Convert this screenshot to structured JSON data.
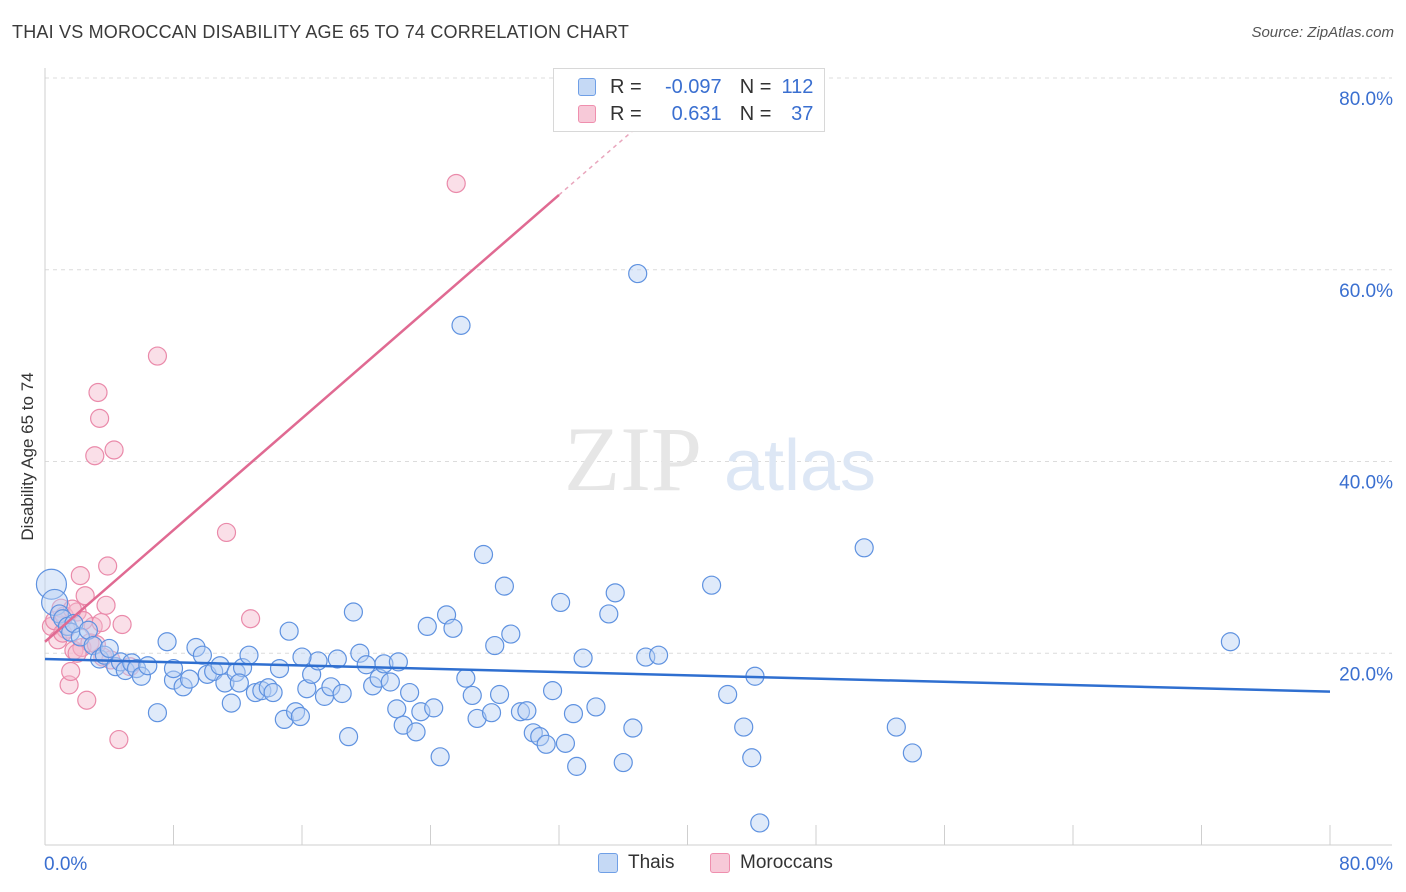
{
  "title": "THAI VS MOROCCAN DISABILITY AGE 65 TO 74 CORRELATION CHART",
  "source": "Source: ZipAtlas.com",
  "watermark": {
    "zip": "ZIP",
    "atlas": "atlas"
  },
  "legend": {
    "rows": [
      {
        "r_label": "R =",
        "r_value": "-0.097",
        "n_label": "N =",
        "n_value": "112",
        "color": "#6f9fe6"
      },
      {
        "r_label": "R =",
        "r_value": "0.631",
        "n_label": "N =",
        "n_value": "37",
        "color": "#ef8fae"
      }
    ]
  },
  "series_labels": {
    "thais": "Thais",
    "moroccans": "Moroccans"
  },
  "chart_data": {
    "type": "scatter",
    "title": "THAI VS MOROCCAN DISABILITY AGE 65 TO 74 CORRELATION CHART",
    "xlabel": "",
    "ylabel": "Disability Age 65 to 74",
    "xlim": [
      0,
      80
    ],
    "ylim": [
      0,
      80
    ],
    "x_tick_labels": [
      "0.0%",
      "80.0%"
    ],
    "y_tick_labels": [
      "20.0%",
      "40.0%",
      "60.0%",
      "80.0%"
    ],
    "y_ticks": [
      20,
      40,
      60,
      80
    ],
    "grid": true,
    "legend_position": "top-center",
    "series": [
      {
        "name": "Thais",
        "color": "#6f9fe6",
        "R": -0.097,
        "N": 112,
        "trend": {
          "x": [
            0,
            80
          ],
          "y": [
            19.4,
            16.0
          ]
        },
        "points": [
          [
            0.4,
            27.2
          ],
          [
            0.6,
            25.3
          ],
          [
            0.9,
            24.1
          ],
          [
            1.1,
            23.6
          ],
          [
            1.4,
            22.8
          ],
          [
            1.6,
            22.2
          ],
          [
            1.8,
            23.1
          ],
          [
            2.2,
            21.7
          ],
          [
            2.7,
            22.4
          ],
          [
            3.0,
            20.8
          ],
          [
            3.4,
            19.4
          ],
          [
            3.7,
            19.8
          ],
          [
            4.0,
            20.5
          ],
          [
            4.4,
            18.6
          ],
          [
            4.7,
            19.1
          ],
          [
            5.0,
            18.2
          ],
          [
            5.4,
            19.0
          ],
          [
            5.7,
            18.4
          ],
          [
            6.0,
            17.6
          ],
          [
            6.4,
            18.7
          ],
          [
            7.0,
            13.8
          ],
          [
            7.6,
            21.2
          ],
          [
            8.0,
            17.2
          ],
          [
            8.6,
            16.5
          ],
          [
            9.0,
            17.3
          ],
          [
            9.4,
            20.6
          ],
          [
            9.8,
            19.8
          ],
          [
            10.1,
            17.8
          ],
          [
            10.5,
            18.1
          ],
          [
            10.9,
            18.7
          ],
          [
            11.2,
            16.9
          ],
          [
            11.6,
            14.8
          ],
          [
            11.9,
            18.0
          ],
          [
            12.3,
            18.5
          ],
          [
            12.7,
            19.8
          ],
          [
            13.1,
            15.9
          ],
          [
            13.5,
            16.1
          ],
          [
            13.9,
            16.4
          ],
          [
            14.2,
            15.9
          ],
          [
            14.6,
            18.4
          ],
          [
            14.9,
            13.1
          ],
          [
            15.2,
            22.3
          ],
          [
            15.6,
            13.9
          ],
          [
            15.9,
            13.4
          ],
          [
            16.3,
            16.3
          ],
          [
            16.6,
            17.8
          ],
          [
            17.0,
            19.2
          ],
          [
            17.4,
            15.5
          ],
          [
            17.8,
            16.5
          ],
          [
            18.2,
            19.4
          ],
          [
            18.5,
            15.8
          ],
          [
            18.9,
            11.3
          ],
          [
            19.2,
            24.3
          ],
          [
            19.6,
            20.0
          ],
          [
            20.0,
            18.8
          ],
          [
            20.4,
            16.6
          ],
          [
            20.8,
            17.4
          ],
          [
            21.1,
            18.9
          ],
          [
            21.5,
            17.0
          ],
          [
            21.9,
            14.2
          ],
          [
            22.3,
            12.5
          ],
          [
            22.7,
            15.9
          ],
          [
            23.1,
            11.8
          ],
          [
            23.4,
            13.9
          ],
          [
            23.8,
            22.8
          ],
          [
            24.2,
            14.3
          ],
          [
            24.6,
            9.2
          ],
          [
            25.0,
            24.0
          ],
          [
            25.4,
            22.6
          ],
          [
            26.2,
            17.4
          ],
          [
            26.6,
            15.6
          ],
          [
            26.9,
            13.2
          ],
          [
            27.3,
            30.3
          ],
          [
            27.8,
            13.8
          ],
          [
            28.3,
            15.7
          ],
          [
            28.6,
            27.0
          ],
          [
            29.0,
            22.0
          ],
          [
            29.6,
            13.9
          ],
          [
            30.0,
            14.0
          ],
          [
            30.4,
            11.7
          ],
          [
            30.8,
            11.3
          ],
          [
            31.2,
            10.5
          ],
          [
            31.6,
            16.1
          ],
          [
            32.1,
            25.3
          ],
          [
            32.4,
            10.6
          ],
          [
            32.9,
            13.7
          ],
          [
            33.1,
            8.2
          ],
          [
            33.5,
            19.5
          ],
          [
            34.3,
            14.4
          ],
          [
            35.1,
            24.1
          ],
          [
            35.5,
            26.3
          ],
          [
            36.0,
            8.6
          ],
          [
            36.6,
            12.2
          ],
          [
            37.4,
            19.6
          ],
          [
            38.2,
            19.8
          ],
          [
            41.5,
            27.1
          ],
          [
            42.5,
            15.7
          ],
          [
            43.5,
            12.3
          ],
          [
            44.0,
            9.1
          ],
          [
            44.2,
            17.6
          ],
          [
            44.5,
            2.3
          ],
          [
            51.0,
            31.0
          ],
          [
            53.0,
            12.3
          ],
          [
            54.0,
            9.6
          ],
          [
            73.8,
            21.2
          ],
          [
            25.9,
            54.2
          ],
          [
            36.9,
            59.6
          ],
          [
            22.0,
            19.1
          ],
          [
            12.1,
            16.9
          ],
          [
            8.0,
            18.4
          ],
          [
            16.0,
            19.6
          ],
          [
            28.0,
            20.8
          ]
        ]
      },
      {
        "name": "Moroccans",
        "color": "#ef8fae",
        "R": 0.631,
        "N": 37,
        "trend": {
          "x": [
            0,
            32
          ],
          "y": [
            21.2,
            67.8
          ]
        },
        "points": [
          [
            0.4,
            22.8
          ],
          [
            0.6,
            23.4
          ],
          [
            0.8,
            21.4
          ],
          [
            1.0,
            24.7
          ],
          [
            1.2,
            23.9
          ],
          [
            1.3,
            22.5
          ],
          [
            1.5,
            16.7
          ],
          [
            1.6,
            18.1
          ],
          [
            1.8,
            20.3
          ],
          [
            2.0,
            24.3
          ],
          [
            2.2,
            28.1
          ],
          [
            2.3,
            20.6
          ],
          [
            2.5,
            26.0
          ],
          [
            2.6,
            15.1
          ],
          [
            2.8,
            21.1
          ],
          [
            3.0,
            22.8
          ],
          [
            3.1,
            40.6
          ],
          [
            3.3,
            47.2
          ],
          [
            3.4,
            44.5
          ],
          [
            3.5,
            23.2
          ],
          [
            3.6,
            19.6
          ],
          [
            3.8,
            25.0
          ],
          [
            3.9,
            29.1
          ],
          [
            4.1,
            19.3
          ],
          [
            4.3,
            41.2
          ],
          [
            4.6,
            11.0
          ],
          [
            4.8,
            23.0
          ],
          [
            5.3,
            18.6
          ],
          [
            7.0,
            51.0
          ],
          [
            11.3,
            32.6
          ],
          [
            12.8,
            23.6
          ],
          [
            25.6,
            69.0
          ],
          [
            2.0,
            20.0
          ],
          [
            1.1,
            22.1
          ],
          [
            3.2,
            20.9
          ],
          [
            2.4,
            23.4
          ],
          [
            1.7,
            24.6
          ]
        ]
      }
    ]
  }
}
